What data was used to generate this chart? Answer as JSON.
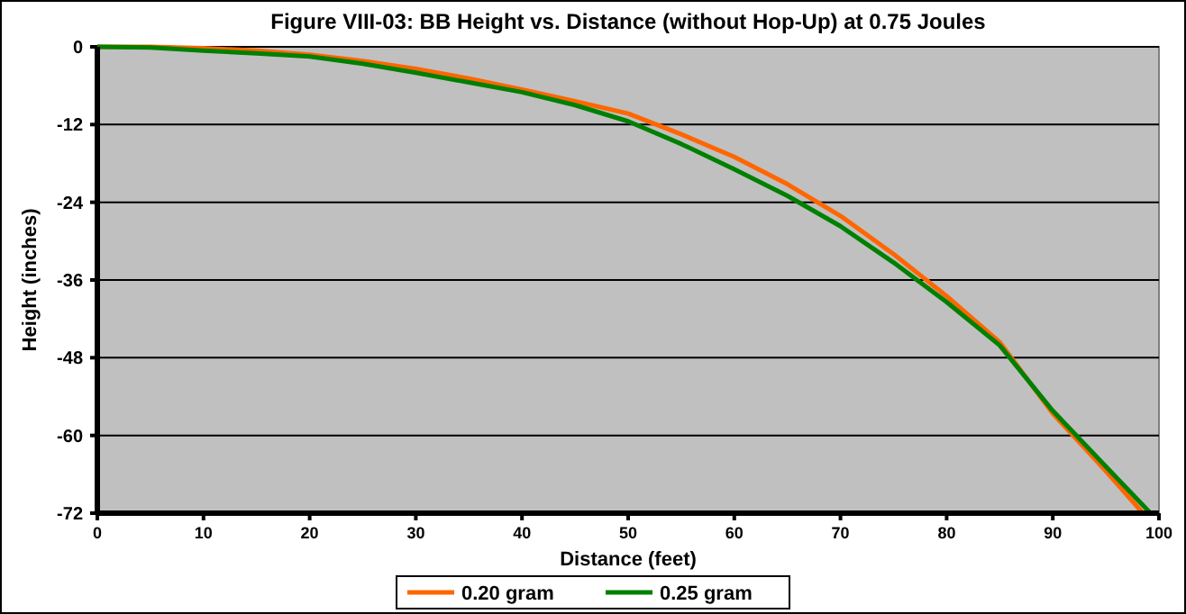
{
  "chart_data": {
    "type": "line",
    "title": "Figure VIII-03:  BB Height vs. Distance (without Hop-Up) at 0.75 Joules",
    "xlabel": "Distance (feet)",
    "ylabel": "Height (inches)",
    "xlim": [
      0,
      100
    ],
    "xticks": [
      0,
      10,
      20,
      30,
      40,
      50,
      60,
      70,
      80,
      90,
      100
    ],
    "ylim": [
      -72,
      0
    ],
    "yticks": [
      -72,
      -60,
      -48,
      -36,
      -24,
      -12,
      0
    ],
    "grid": "y",
    "legend": "bottom",
    "marker": "none",
    "line_style": "solid",
    "series": [
      {
        "name": "0.20 gram",
        "color": "#ff6600",
        "x": [
          0,
          5,
          10,
          15,
          20,
          25,
          30,
          35,
          40,
          45,
          50,
          55,
          60,
          65,
          70,
          75,
          80,
          85,
          90,
          95,
          98.5
        ],
        "values": [
          0,
          0,
          -0.2,
          -0.6,
          -1.2,
          -2.2,
          -3.4,
          -4.9,
          -6.6,
          -8.4,
          -10.3,
          -13.5,
          -17,
          -21.2,
          -26.1,
          -32,
          -38.5,
          -45.6,
          -56.6,
          -65.5,
          -72
        ]
      },
      {
        "name": "0.25 gram",
        "color": "#008000",
        "x": [
          0,
          5,
          10,
          15,
          20,
          25,
          30,
          35,
          40,
          45,
          50,
          55,
          60,
          65,
          70,
          75,
          80,
          85,
          90,
          95,
          99.2
        ],
        "values": [
          0,
          -0.1,
          -0.6,
          -1,
          -1.5,
          -2.6,
          -4,
          -5.5,
          -7,
          -9,
          -11.5,
          -15,
          -18.9,
          -23,
          -27.7,
          -33.3,
          -39.4,
          -46.1,
          -56.2,
          -64.8,
          -72
        ]
      }
    ]
  }
}
